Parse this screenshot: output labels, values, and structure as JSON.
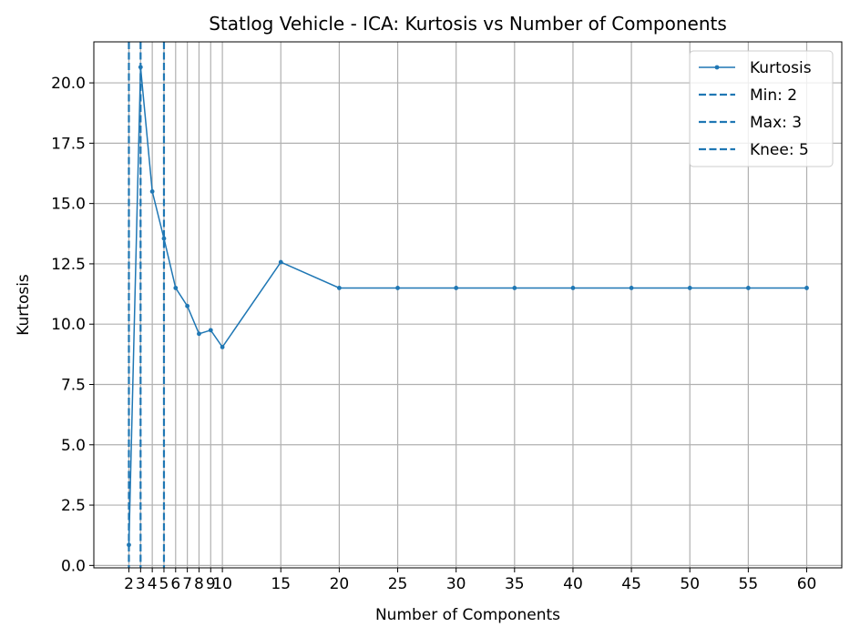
{
  "chart_data": {
    "type": "line",
    "title": "Statlog Vehicle - ICA: Kurtosis vs Number of Components",
    "xlabel": "Number of Components",
    "ylabel": "Kurtosis",
    "xlim": [
      -1,
      63
    ],
    "ylim": [
      -0.1,
      21.7
    ],
    "xticks": [
      2,
      3,
      4,
      5,
      6,
      7,
      8,
      9,
      10,
      15,
      20,
      25,
      30,
      35,
      40,
      45,
      50,
      55,
      60
    ],
    "yticks": [
      0.0,
      2.5,
      5.0,
      7.5,
      10.0,
      12.5,
      15.0,
      17.5,
      20.0
    ],
    "ytick_labels": [
      "0.0",
      "2.5",
      "5.0",
      "7.5",
      "10.0",
      "12.5",
      "15.0",
      "17.5",
      "20.0"
    ],
    "grid": true,
    "legend_position": "top-right",
    "series": [
      {
        "name": "Kurtosis",
        "color": "#1f77b4",
        "x": [
          2,
          3,
          4,
          5,
          6,
          7,
          8,
          9,
          10,
          15,
          20,
          25,
          30,
          35,
          40,
          45,
          50,
          55,
          60
        ],
        "values": [
          0.85,
          20.65,
          15.5,
          13.55,
          11.5,
          10.75,
          9.6,
          9.75,
          9.05,
          12.57,
          11.5,
          11.5,
          11.5,
          11.5,
          11.5,
          11.5,
          11.5,
          11.5,
          11.5
        ]
      }
    ],
    "vlines": [
      {
        "name": "Min: 2",
        "x": 2,
        "color": "#1f77b4",
        "style": "dashed"
      },
      {
        "name": "Max: 3",
        "x": 3,
        "color": "#1f77b4",
        "style": "dashed"
      },
      {
        "name": "Knee: 5",
        "x": 5,
        "color": "#1f77b4",
        "style": "dashed"
      }
    ]
  }
}
